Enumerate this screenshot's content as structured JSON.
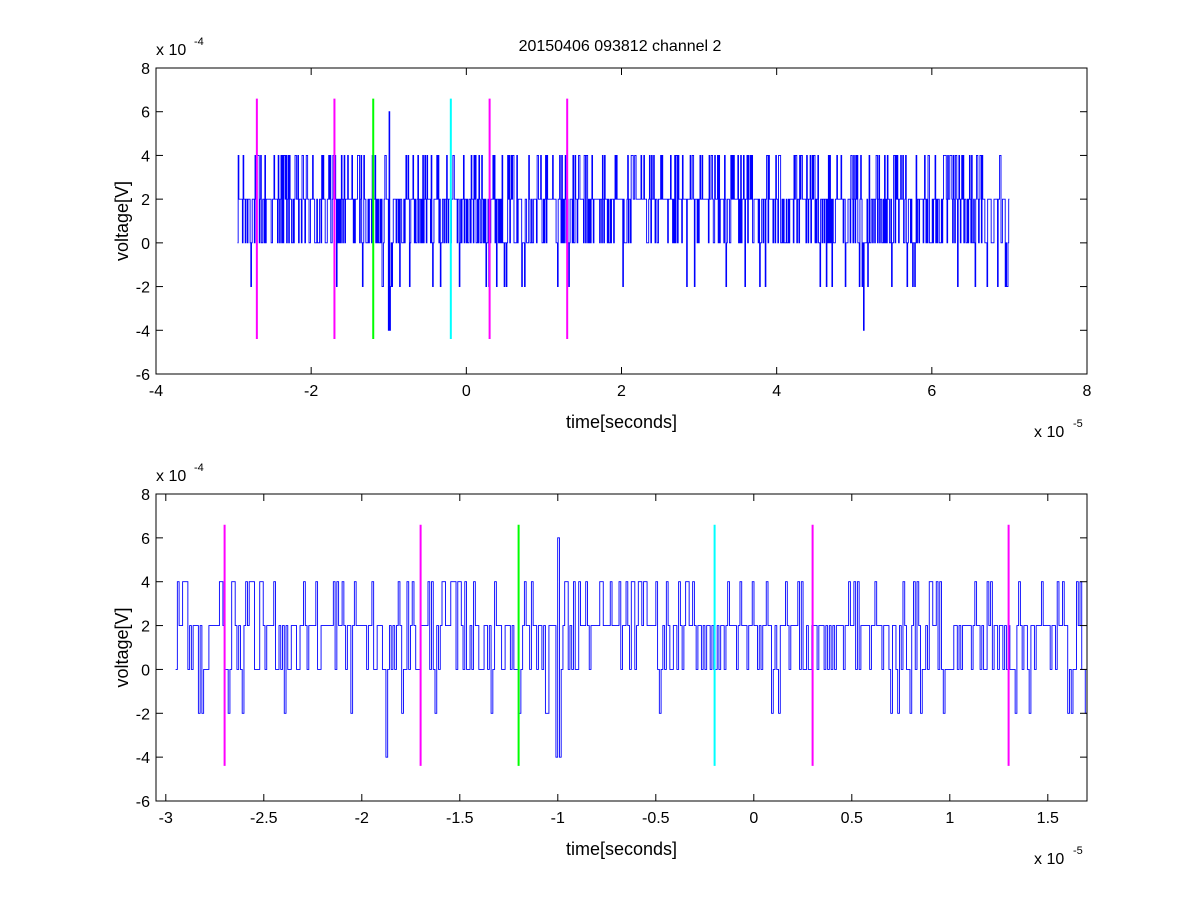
{
  "figure": {
    "title": "20150406 093812 channel 2"
  },
  "chart_data": [
    {
      "type": "line",
      "title": "20150406 093812 channel 2",
      "xlabel": "time[seconds]",
      "ylabel": "voltage[V]",
      "x_exponent_label": "x 10",
      "x_exponent": "-5",
      "y_exponent_label": "x 10",
      "y_exponent": "-4",
      "xlim": [
        -4,
        8
      ],
      "ylim": [
        -6,
        8
      ],
      "x_ticks": [
        "-4",
        "-2",
        "0",
        "2",
        "4",
        "6",
        "8"
      ],
      "y_ticks": [
        "-6",
        "-4",
        "-2",
        "0",
        "2",
        "4",
        "6",
        "8"
      ],
      "grid": false,
      "signal": {
        "name": "voltage",
        "color": "#0000ff",
        "x_start": -2.95,
        "x_end": 7.0,
        "levels": [
          -4,
          -2,
          0,
          2,
          4,
          6
        ]
      },
      "markers": [
        {
          "x": -2.7,
          "color": "#ff00ff",
          "y_from": -4.4,
          "y_to": 6.6
        },
        {
          "x": -1.7,
          "color": "#ff00ff",
          "y_from": -4.4,
          "y_to": 6.6
        },
        {
          "x": -1.2,
          "color": "#00ff00",
          "y_from": -4.4,
          "y_to": 6.6
        },
        {
          "x": -0.2,
          "color": "#00ffff",
          "y_from": -4.4,
          "y_to": 6.6
        },
        {
          "x": 0.3,
          "color": "#ff00ff",
          "y_from": -4.4,
          "y_to": 6.6
        },
        {
          "x": 1.3,
          "color": "#ff00ff",
          "y_from": -4.4,
          "y_to": 6.6
        }
      ]
    },
    {
      "type": "line",
      "title": "",
      "xlabel": "time[seconds]",
      "ylabel": "voltage[V]",
      "x_exponent_label": "x 10",
      "x_exponent": "-5",
      "y_exponent_label": "x 10",
      "y_exponent": "-4",
      "xlim": [
        -3.05,
        1.7
      ],
      "ylim": [
        -6,
        8
      ],
      "x_ticks": [
        "-3",
        "-2.5",
        "-2",
        "-1.5",
        "-1",
        "-0.5",
        "0",
        "0.5",
        "1",
        "1.5"
      ],
      "y_ticks": [
        "-6",
        "-4",
        "-2",
        "0",
        "2",
        "4",
        "6",
        "8"
      ],
      "grid": false,
      "signal": {
        "name": "voltage",
        "color": "#0000ff",
        "x_start": -2.95,
        "x_end": 1.7,
        "levels": [
          -4,
          -2,
          0,
          2,
          4,
          6
        ]
      },
      "markers": [
        {
          "x": -2.7,
          "color": "#ff00ff",
          "y_from": -4.4,
          "y_to": 6.6
        },
        {
          "x": -1.7,
          "color": "#ff00ff",
          "y_from": -4.4,
          "y_to": 6.6
        },
        {
          "x": -1.2,
          "color": "#00ff00",
          "y_from": -4.4,
          "y_to": 6.6
        },
        {
          "x": -0.2,
          "color": "#00ffff",
          "y_from": -4.4,
          "y_to": 6.6
        },
        {
          "x": 0.3,
          "color": "#ff00ff",
          "y_from": -4.4,
          "y_to": 6.6
        },
        {
          "x": 1.3,
          "color": "#ff00ff",
          "y_from": -4.4,
          "y_to": 6.6
        }
      ]
    }
  ]
}
